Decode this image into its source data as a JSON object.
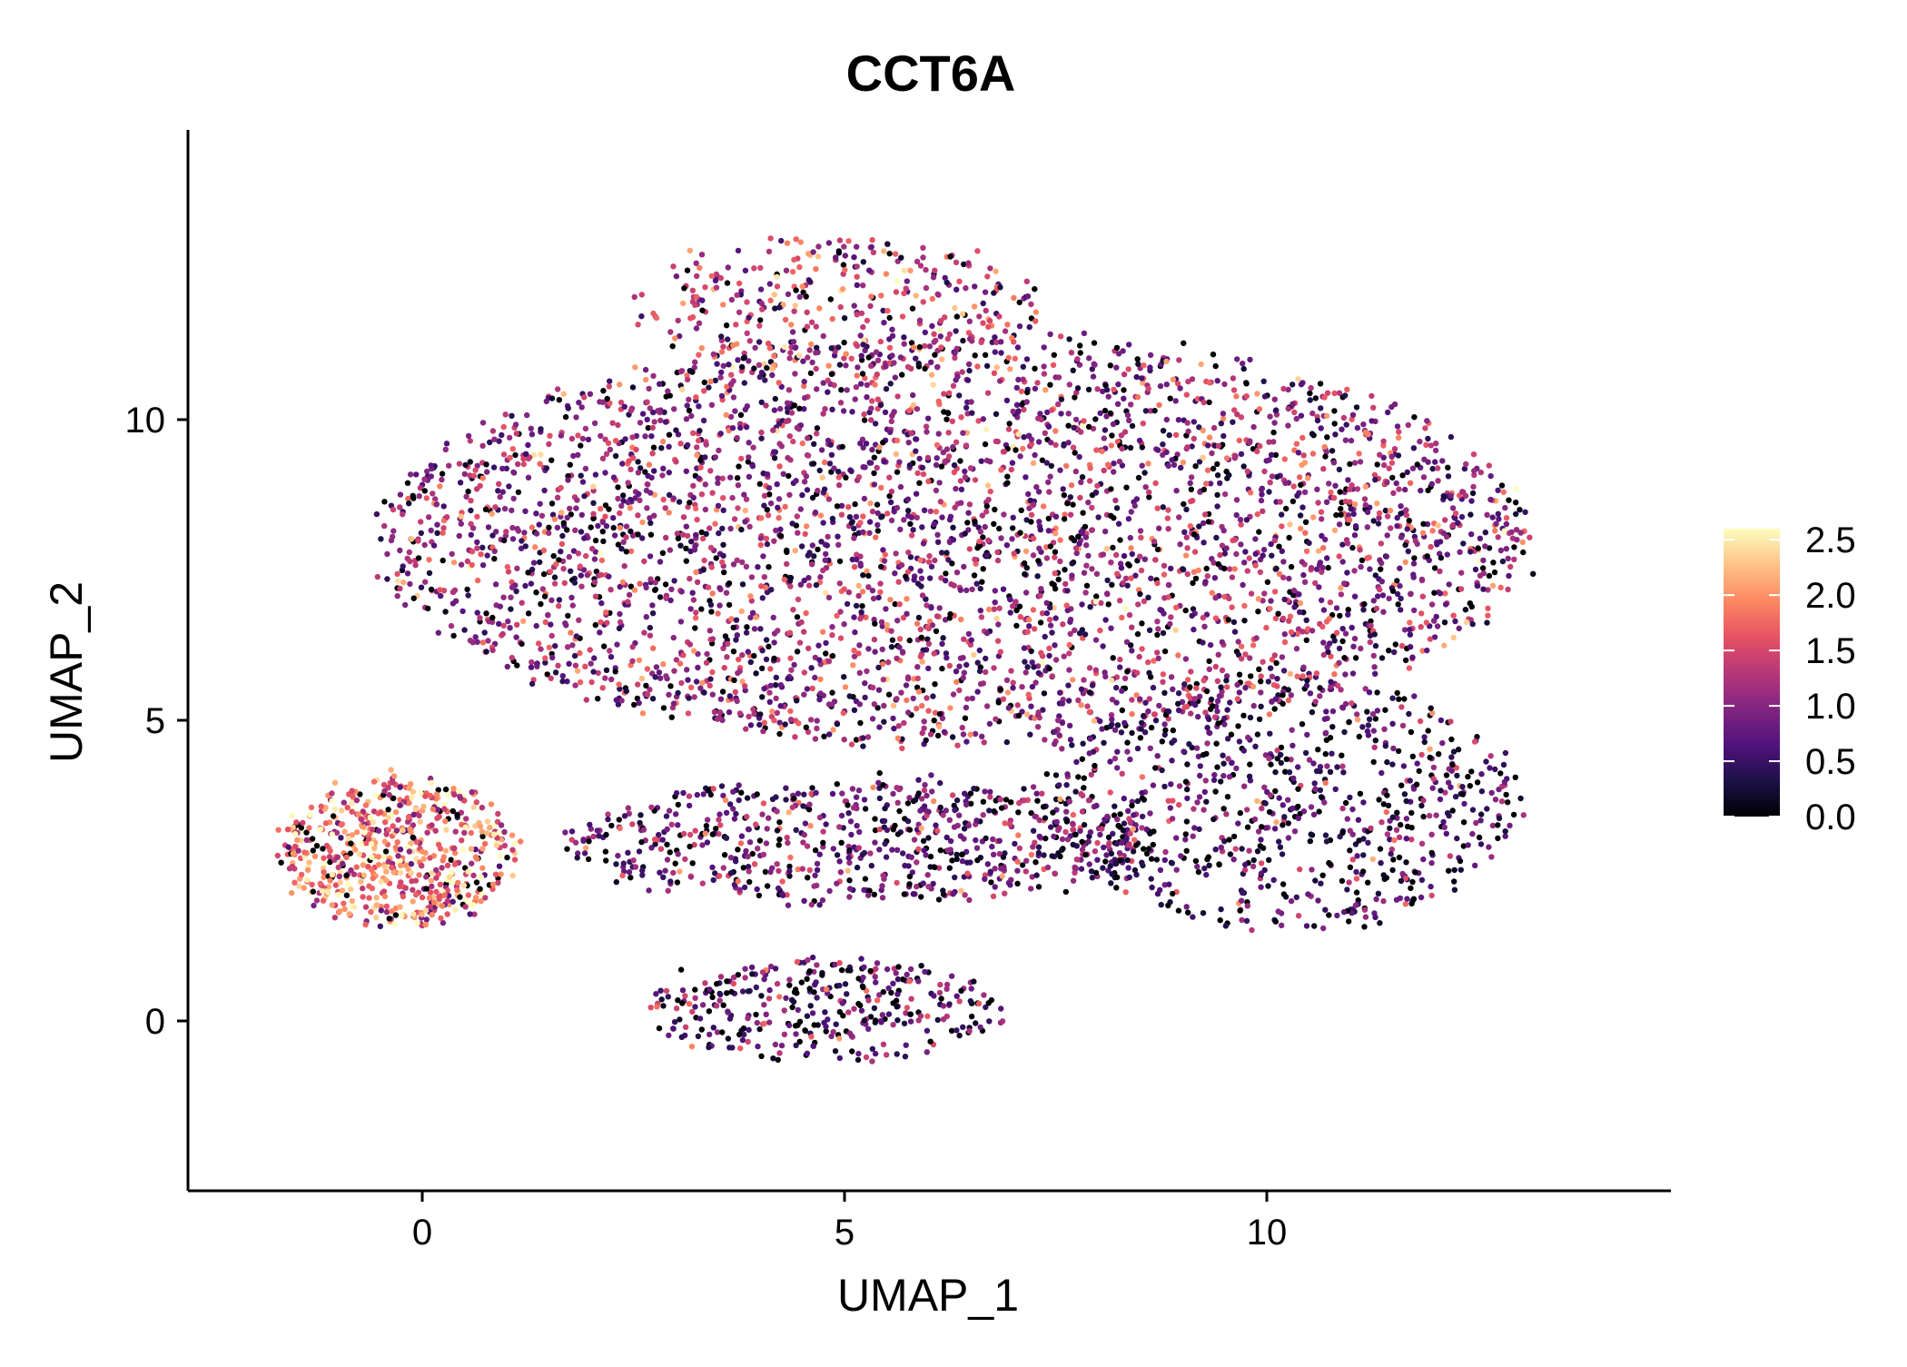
{
  "chart_data": {
    "type": "scatter",
    "subtype": "umap-feature-plot",
    "title": "CCT6A",
    "xlabel": "UMAP_1",
    "ylabel": "UMAP_2",
    "xlim": [
      -2.8,
      14.8
    ],
    "ylim": [
      -2.8,
      14.8
    ],
    "xticks": [
      0,
      5,
      10
    ],
    "yticks": [
      0,
      5,
      10
    ],
    "grid": false,
    "legend": {
      "placement": "right",
      "type": "colorbar",
      "min": 0.0,
      "max": 2.6,
      "ticks": [
        0.0,
        0.5,
        1.0,
        1.5,
        2.0,
        2.5
      ],
      "tick_labels": [
        "0.0",
        "0.5",
        "1.0",
        "1.5",
        "2.0",
        "2.5"
      ]
    },
    "colormap": {
      "name": "magma",
      "stops": [
        "#000004",
        "#1d1147",
        "#51127c",
        "#822681",
        "#b73779",
        "#e75263",
        "#fc8961",
        "#fec287",
        "#fcfdbf"
      ]
    },
    "point_generation_note": "Cells are sampled procedurally from the cluster regions below (data units), each with a mean expression level.",
    "clusters": [
      {
        "name": "main-body",
        "cx": 6.3,
        "cy": 8.0,
        "rx": 6.8,
        "ry": 3.4,
        "n": 3800,
        "mean_expr": 1.0
      },
      {
        "name": "main-top",
        "cx": 4.9,
        "cy": 11.9,
        "rx": 2.4,
        "ry": 1.1,
        "n": 350,
        "mean_expr": 1.2
      },
      {
        "name": "main-right-lobe",
        "cx": 10.2,
        "cy": 3.6,
        "rx": 2.8,
        "ry": 2.1,
        "n": 800,
        "mean_expr": 0.6
      },
      {
        "name": "middle-bands",
        "cx": 5.2,
        "cy": 3.0,
        "rx": 3.5,
        "ry": 1.0,
        "n": 700,
        "mean_expr": 0.8
      },
      {
        "name": "left-cluster",
        "cx": -0.3,
        "cy": 2.8,
        "rx": 1.4,
        "ry": 1.2,
        "n": 650,
        "mean_expr": 1.8
      },
      {
        "name": "bottom-cluster",
        "cx": 4.7,
        "cy": 0.2,
        "rx": 2.1,
        "ry": 0.8,
        "n": 350,
        "mean_expr": 0.7
      }
    ]
  }
}
